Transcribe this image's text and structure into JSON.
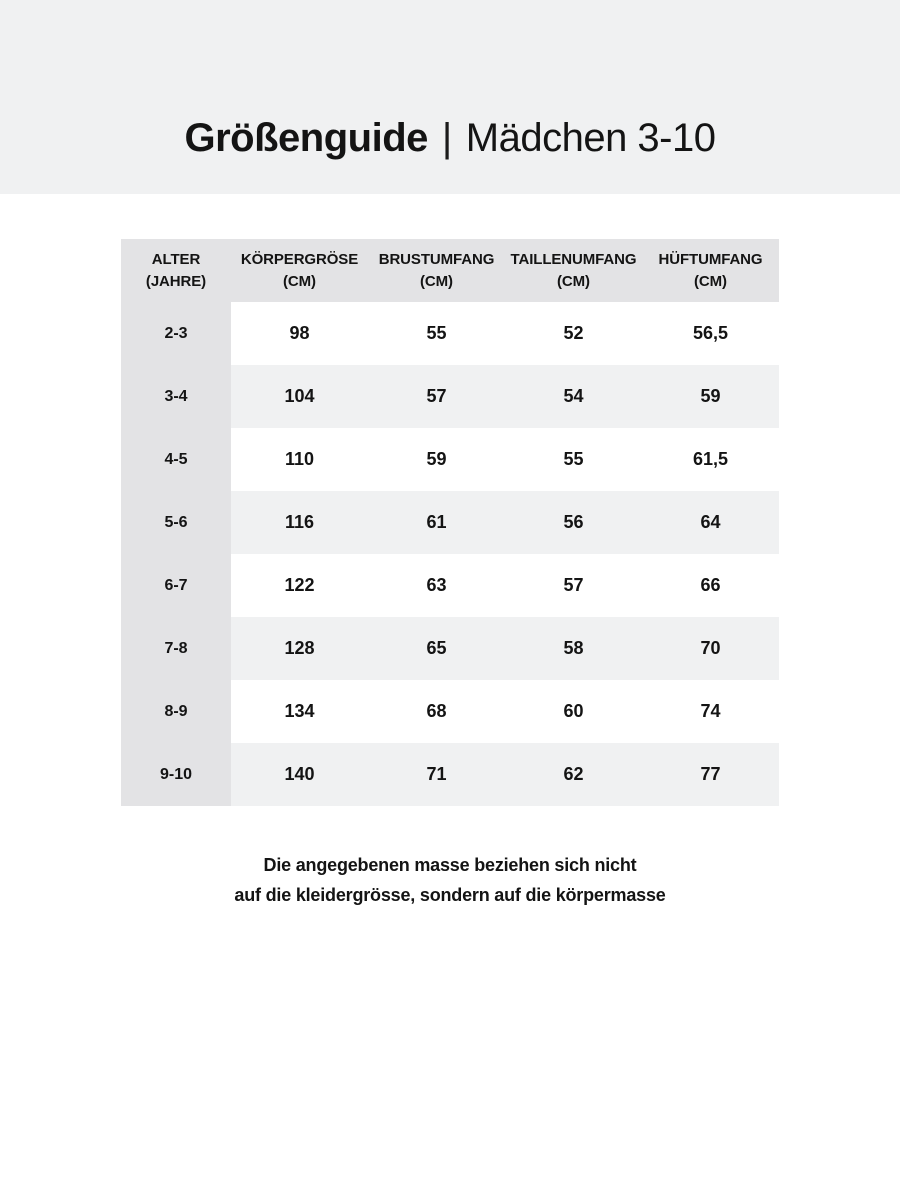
{
  "header": {
    "title_bold": "Größenguide",
    "title_divider": "|",
    "title_regular": "Mädchen 3-10"
  },
  "table": {
    "columns": [
      {
        "label": "ALTER",
        "unit": "(JAHRE)"
      },
      {
        "label": "KÖRPERGRÖSE",
        "unit": "(CM)"
      },
      {
        "label": "BRUSTUMFANG",
        "unit": "(CM)"
      },
      {
        "label": "TAILLENUMFANG",
        "unit": "(CM)"
      },
      {
        "label": "HÜFTUMFANG",
        "unit": "(CM)"
      }
    ],
    "rows": [
      {
        "age": "2-3",
        "values": [
          "98",
          "55",
          "52",
          "56,5"
        ]
      },
      {
        "age": "3-4",
        "values": [
          "104",
          "57",
          "54",
          "59"
        ]
      },
      {
        "age": "4-5",
        "values": [
          "110",
          "59",
          "55",
          "61,5"
        ]
      },
      {
        "age": "5-6",
        "values": [
          "116",
          "61",
          "56",
          "64"
        ]
      },
      {
        "age": "6-7",
        "values": [
          "122",
          "63",
          "57",
          "66"
        ]
      },
      {
        "age": "7-8",
        "values": [
          "128",
          "65",
          "58",
          "70"
        ]
      },
      {
        "age": "8-9",
        "values": [
          "134",
          "68",
          "60",
          "74"
        ]
      },
      {
        "age": "9-10",
        "values": [
          "140",
          "71",
          "62",
          "77"
        ]
      }
    ]
  },
  "footnote": {
    "line1": "Die angegebenen masse beziehen sich nicht",
    "line2": "auf die kleidergrösse, sondern auf die körpermasse"
  },
  "colors": {
    "banner_background": "#f0f1f2",
    "table_header_background": "#e3e3e5",
    "row_alternate_background": "#f0f1f2",
    "row_background": "#ffffff",
    "text": "#141414"
  }
}
